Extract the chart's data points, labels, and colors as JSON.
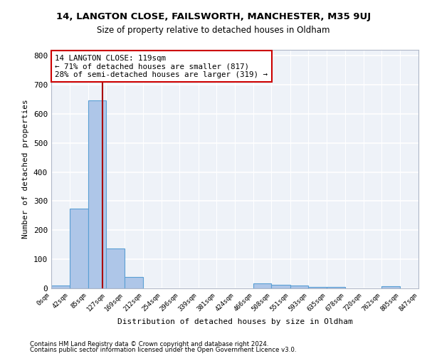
{
  "title1": "14, LANGTON CLOSE, FAILSWORTH, MANCHESTER, M35 9UJ",
  "title2": "Size of property relative to detached houses in Oldham",
  "xlabel": "Distribution of detached houses by size in Oldham",
  "ylabel": "Number of detached properties",
  "bin_edges": [
    0,
    42,
    85,
    127,
    169,
    212,
    254,
    296,
    339,
    381,
    424,
    466,
    508,
    551,
    593,
    635,
    678,
    720,
    762,
    805,
    847
  ],
  "bar_heights": [
    10,
    275,
    645,
    138,
    38,
    0,
    0,
    0,
    0,
    0,
    0,
    18,
    13,
    10,
    5,
    5,
    0,
    0,
    8,
    0
  ],
  "bar_color": "#aec6e8",
  "bar_edge_color": "#5a9fd4",
  "vline_x": 119,
  "vline_color": "#aa0000",
  "annotation_line1": "14 LANGTON CLOSE: 119sqm",
  "annotation_line2": "← 71% of detached houses are smaller (817)",
  "annotation_line3": "28% of semi-detached houses are larger (319) →",
  "annotation_box_color": "#ffffff",
  "annotation_box_edge_color": "#cc0000",
  "ylim": [
    0,
    820
  ],
  "yticks": [
    0,
    100,
    200,
    300,
    400,
    500,
    600,
    700,
    800
  ],
  "footer1": "Contains HM Land Registry data © Crown copyright and database right 2024.",
  "footer2": "Contains public sector information licensed under the Open Government Licence v3.0.",
  "bg_color": "#eef2f8",
  "grid_color": "#ffffff",
  "tick_labels": [
    "0sqm",
    "42sqm",
    "85sqm",
    "127sqm",
    "169sqm",
    "212sqm",
    "254sqm",
    "296sqm",
    "339sqm",
    "381sqm",
    "424sqm",
    "466sqm",
    "508sqm",
    "551sqm",
    "593sqm",
    "635sqm",
    "678sqm",
    "720sqm",
    "762sqm",
    "805sqm",
    "847sqm"
  ]
}
